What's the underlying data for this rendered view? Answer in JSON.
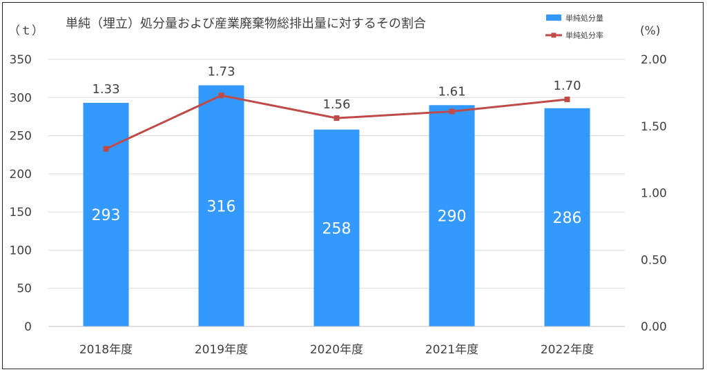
{
  "chart_data": {
    "type": "bar",
    "title": "単純（埋立）処分量および産業廃棄物総排出量に対するその割合",
    "categories": [
      "2018年度",
      "2019年度",
      "2020年度",
      "2021年度",
      "2022年度"
    ],
    "series": [
      {
        "name": "単純処分量",
        "kind": "bar",
        "axis": "left",
        "values": [
          293,
          316,
          258,
          290,
          286
        ],
        "color": "#3399FF"
      },
      {
        "name": "単純処分率",
        "kind": "line",
        "axis": "right",
        "values": [
          1.33,
          1.73,
          1.56,
          1.61,
          1.7
        ],
        "color": "#BE4B48"
      }
    ],
    "y_left": {
      "unit": "（ｔ）",
      "range": [
        0,
        350
      ],
      "ticks": [
        "0",
        "50",
        "100",
        "150",
        "200",
        "250",
        "300",
        "350"
      ]
    },
    "y_right": {
      "unit": "(%)",
      "range": [
        0,
        2
      ],
      "ticks": [
        "0.00",
        "0.50",
        "1.00",
        "1.50",
        "2.00"
      ]
    },
    "bar_labels": [
      "293",
      "316",
      "258",
      "290",
      "286"
    ],
    "line_labels": [
      "1.33",
      "1.73",
      "1.56",
      "1.61",
      "1.70"
    ],
    "grid": true,
    "legend_position": "top-right"
  }
}
